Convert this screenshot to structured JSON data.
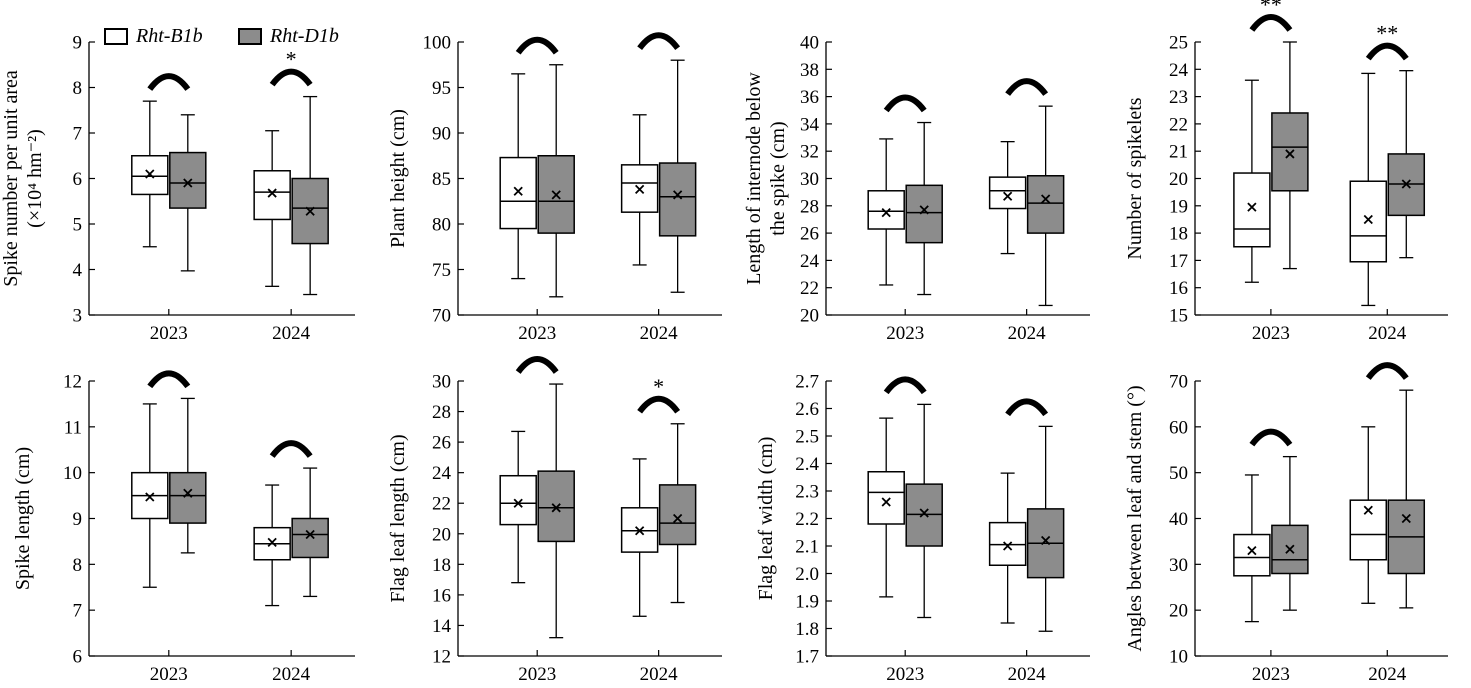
{
  "colors": {
    "b1b_fill": "#ffffff",
    "d1b_fill": "#8c8c8c",
    "stroke": "#000000"
  },
  "legend": [
    {
      "label": "Rht-B1b",
      "color": "#ffffff"
    },
    {
      "label": "Rht-D1b",
      "color": "#8c8c8c"
    }
  ],
  "chart_data": [
    {
      "type": "box",
      "ylabel": "Spike number per unit area (×10⁴ hm⁻²)",
      "ylabel_lines": [
        "Spike number per unit area",
        "(×10⁴ hm⁻²)"
      ],
      "categories": [
        "2023",
        "2024"
      ],
      "ylim": [
        3,
        9
      ],
      "yticks": [
        3,
        4,
        5,
        6,
        7,
        8,
        9
      ],
      "tick_decimals": 0,
      "series": [
        {
          "name": "Rht-B1b",
          "boxes": [
            {
              "min": 4.5,
              "q1": 5.65,
              "median": 6.05,
              "q3": 6.5,
              "max": 7.7,
              "mean": 6.1
            },
            {
              "min": 3.63,
              "q1": 5.1,
              "median": 5.7,
              "q3": 6.17,
              "max": 7.05,
              "mean": 5.68
            }
          ]
        },
        {
          "name": "Rht-D1b",
          "boxes": [
            {
              "min": 3.97,
              "q1": 5.35,
              "median": 5.9,
              "q3": 6.57,
              "max": 7.4,
              "mean": 5.9
            },
            {
              "min": 3.45,
              "q1": 4.57,
              "median": 5.35,
              "q3": 6.0,
              "max": 7.8,
              "mean": 5.28
            }
          ]
        }
      ],
      "significance": [
        "",
        "*"
      ]
    },
    {
      "type": "box",
      "ylabel": "Plant height (cm)",
      "ylabel_lines": [
        "Plant height (cm)"
      ],
      "categories": [
        "2023",
        "2024"
      ],
      "ylim": [
        70,
        100
      ],
      "yticks": [
        70,
        75,
        80,
        85,
        90,
        95,
        100
      ],
      "tick_decimals": 0,
      "series": [
        {
          "name": "Rht-B1b",
          "boxes": [
            {
              "min": 74.0,
              "q1": 79.5,
              "median": 82.5,
              "q3": 87.3,
              "max": 96.5,
              "mean": 83.6
            },
            {
              "min": 75.5,
              "q1": 81.3,
              "median": 84.5,
              "q3": 86.5,
              "max": 92.0,
              "mean": 83.8
            }
          ]
        },
        {
          "name": "Rht-D1b",
          "boxes": [
            {
              "min": 72.0,
              "q1": 79.0,
              "median": 82.5,
              "q3": 87.5,
              "max": 97.5,
              "mean": 83.2
            },
            {
              "min": 72.5,
              "q1": 78.7,
              "median": 83.0,
              "q3": 86.7,
              "max": 98.0,
              "mean": 83.2
            }
          ]
        }
      ],
      "significance": [
        "",
        ""
      ]
    },
    {
      "type": "box",
      "ylabel": "Length of internode below the spike (cm)",
      "ylabel_lines": [
        "Length of internode below",
        "the spike (cm)"
      ],
      "categories": [
        "2023",
        "2024"
      ],
      "ylim": [
        20,
        40
      ],
      "yticks": [
        20,
        22,
        24,
        26,
        28,
        30,
        32,
        34,
        36,
        38,
        40
      ],
      "tick_decimals": 0,
      "series": [
        {
          "name": "Rht-B1b",
          "boxes": [
            {
              "min": 22.2,
              "q1": 26.3,
              "median": 27.6,
              "q3": 29.1,
              "max": 32.9,
              "mean": 27.5
            },
            {
              "min": 24.5,
              "q1": 27.8,
              "median": 29.1,
              "q3": 30.1,
              "max": 32.7,
              "mean": 28.7
            }
          ]
        },
        {
          "name": "Rht-D1b",
          "boxes": [
            {
              "min": 21.5,
              "q1": 25.3,
              "median": 27.5,
              "q3": 29.5,
              "max": 34.1,
              "mean": 27.7
            },
            {
              "min": 20.7,
              "q1": 26.0,
              "median": 28.2,
              "q3": 30.2,
              "max": 35.3,
              "mean": 28.5
            }
          ]
        }
      ],
      "significance": [
        "",
        ""
      ]
    },
    {
      "type": "box",
      "ylabel": "Number of spikelets",
      "ylabel_lines": [
        "Number of spikelets"
      ],
      "categories": [
        "2023",
        "2024"
      ],
      "ylim": [
        15,
        25
      ],
      "yticks": [
        15,
        16,
        17,
        18,
        19,
        20,
        21,
        22,
        23,
        24,
        25
      ],
      "tick_decimals": 0,
      "series": [
        {
          "name": "Rht-B1b",
          "boxes": [
            {
              "min": 16.2,
              "q1": 17.5,
              "median": 18.15,
              "q3": 20.2,
              "max": 23.6,
              "mean": 18.95
            },
            {
              "min": 15.35,
              "q1": 16.95,
              "median": 17.9,
              "q3": 19.9,
              "max": 23.85,
              "mean": 18.5
            }
          ]
        },
        {
          "name": "Rht-D1b",
          "boxes": [
            {
              "min": 16.7,
              "q1": 19.55,
              "median": 21.15,
              "q3": 22.4,
              "max": 25.0,
              "mean": 20.9
            },
            {
              "min": 17.1,
              "q1": 18.65,
              "median": 19.8,
              "q3": 20.9,
              "max": 23.95,
              "mean": 19.8
            }
          ]
        }
      ],
      "significance": [
        "**",
        "**"
      ]
    },
    {
      "type": "box",
      "ylabel": "Spike length (cm)",
      "ylabel_lines": [
        "Spike length (cm)"
      ],
      "categories": [
        "2023",
        "2024"
      ],
      "ylim": [
        6,
        12
      ],
      "yticks": [
        6,
        7,
        8,
        9,
        10,
        11,
        12
      ],
      "tick_decimals": 0,
      "series": [
        {
          "name": "Rht-B1b",
          "boxes": [
            {
              "min": 7.5,
              "q1": 9.0,
              "median": 9.5,
              "q3": 10.0,
              "max": 11.5,
              "mean": 9.47
            },
            {
              "min": 7.1,
              "q1": 8.1,
              "median": 8.45,
              "q3": 8.8,
              "max": 9.73,
              "mean": 8.48
            }
          ]
        },
        {
          "name": "Rht-D1b",
          "boxes": [
            {
              "min": 8.25,
              "q1": 8.9,
              "median": 9.5,
              "q3": 10.0,
              "max": 11.62,
              "mean": 9.55
            },
            {
              "min": 7.3,
              "q1": 8.15,
              "median": 8.65,
              "q3": 9.0,
              "max": 10.1,
              "mean": 8.65
            }
          ]
        }
      ],
      "significance": [
        "",
        ""
      ]
    },
    {
      "type": "box",
      "ylabel": "Flag leaf length (cm)",
      "ylabel_lines": [
        "Flag leaf length (cm)"
      ],
      "categories": [
        "2023",
        "2024"
      ],
      "ylim": [
        12,
        30
      ],
      "yticks": [
        12,
        14,
        16,
        18,
        20,
        22,
        24,
        26,
        28,
        30
      ],
      "tick_decimals": 0,
      "series": [
        {
          "name": "Rht-B1b",
          "boxes": [
            {
              "min": 16.8,
              "q1": 20.6,
              "median": 22.0,
              "q3": 23.8,
              "max": 26.7,
              "mean": 22.0
            },
            {
              "min": 14.6,
              "q1": 18.8,
              "median": 20.2,
              "q3": 21.7,
              "max": 24.9,
              "mean": 20.2
            }
          ]
        },
        {
          "name": "Rht-D1b",
          "boxes": [
            {
              "min": 13.2,
              "q1": 19.5,
              "median": 21.7,
              "q3": 24.1,
              "max": 29.8,
              "mean": 21.7
            },
            {
              "min": 15.5,
              "q1": 19.3,
              "median": 20.7,
              "q3": 23.2,
              "max": 27.2,
              "mean": 21.0
            }
          ]
        }
      ],
      "significance": [
        "",
        "*"
      ]
    },
    {
      "type": "box",
      "ylabel": "Flag leaf width (cm)",
      "ylabel_lines": [
        "Flag leaf width (cm)"
      ],
      "categories": [
        "2023",
        "2024"
      ],
      "ylim": [
        1.7,
        2.7
      ],
      "yticks": [
        1.7,
        1.8,
        1.9,
        2.0,
        2.1,
        2.2,
        2.3,
        2.4,
        2.5,
        2.6,
        2.7
      ],
      "tick_decimals": 1,
      "series": [
        {
          "name": "Rht-B1b",
          "boxes": [
            {
              "min": 1.915,
              "q1": 2.18,
              "median": 2.295,
              "q3": 2.37,
              "max": 2.565,
              "mean": 2.26
            },
            {
              "min": 1.82,
              "q1": 2.03,
              "median": 2.105,
              "q3": 2.185,
              "max": 2.365,
              "mean": 2.1
            }
          ]
        },
        {
          "name": "Rht-D1b",
          "boxes": [
            {
              "min": 1.84,
              "q1": 2.1,
              "median": 2.215,
              "q3": 2.325,
              "max": 2.615,
              "mean": 2.22
            },
            {
              "min": 1.79,
              "q1": 1.985,
              "median": 2.11,
              "q3": 2.235,
              "max": 2.535,
              "mean": 2.12
            }
          ]
        }
      ],
      "significance": [
        "",
        ""
      ]
    },
    {
      "type": "box",
      "ylabel": "Angles between leaf and stem (°)",
      "ylabel_lines": [
        "Angles between leaf and stem (°)"
      ],
      "categories": [
        "2023",
        "2024"
      ],
      "ylim": [
        10,
        70
      ],
      "yticks": [
        10,
        20,
        30,
        40,
        50,
        60,
        70
      ],
      "tick_decimals": 0,
      "series": [
        {
          "name": "Rht-B1b",
          "boxes": [
            {
              "min": 17.5,
              "q1": 27.5,
              "median": 31.5,
              "q3": 36.5,
              "max": 49.5,
              "mean": 33.0
            },
            {
              "min": 21.5,
              "q1": 31.0,
              "median": 36.5,
              "q3": 44.0,
              "max": 60.0,
              "mean": 41.8
            }
          ]
        },
        {
          "name": "Rht-D1b",
          "boxes": [
            {
              "min": 20.0,
              "q1": 28.0,
              "median": 31.0,
              "q3": 38.5,
              "max": 53.5,
              "mean": 33.3
            },
            {
              "min": 20.5,
              "q1": 28.0,
              "median": 36.0,
              "q3": 44.0,
              "max": 68.0,
              "mean": 40.0
            }
          ]
        }
      ],
      "significance": [
        "",
        ""
      ]
    }
  ]
}
